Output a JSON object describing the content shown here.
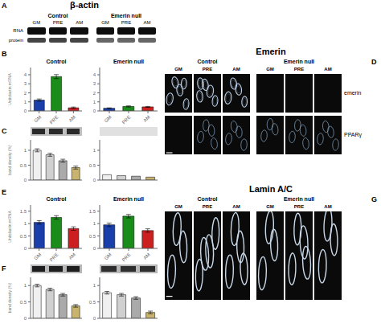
{
  "annotations": [
    "β-actin",
    "Emerin",
    "Lamin A/C",
    "A",
    "B",
    "C",
    "D",
    "E",
    "F",
    "G"
  ],
  "chart_data": [
    {
      "type": "gel",
      "title": "Control",
      "categories": [
        "GM",
        "PRE",
        "AM"
      ],
      "annotations": [
        "RNA",
        "protein"
      ]
    },
    {
      "type": "gel",
      "title": "Emerin null",
      "categories": [
        "GM",
        "PRE",
        "AM"
      ]
    },
    {
      "type": "bar",
      "title": "Control",
      "ylabel": "Units/actin mRNA",
      "categories": [
        "GM",
        "PRE",
        "AM"
      ],
      "values": [
        1.2,
        3.8,
        0.35
      ],
      "errors": [
        0.12,
        0.22,
        0.08
      ],
      "colors": [
        "#1a3faa",
        "#1a8c1a",
        "#cc2020"
      ],
      "ylim": [
        0,
        4.8
      ],
      "yticks": [
        0,
        1,
        2,
        3,
        4
      ]
    },
    {
      "type": "bar",
      "title": "Emerin null",
      "categories": [
        "GM",
        "PRE",
        "AM"
      ],
      "values": [
        0.3,
        0.5,
        0.45
      ],
      "errors": [
        0.04,
        0.06,
        0.05
      ],
      "colors": [
        "#1a3faa",
        "#1a8c1a",
        "#cc2020"
      ],
      "ylim": [
        0,
        4.8
      ],
      "yticks": [
        0,
        1,
        2,
        3,
        4
      ]
    },
    {
      "type": "bar",
      "ylabel": "band density (%)",
      "categories": [
        null,
        null,
        null,
        null
      ],
      "values": [
        1.0,
        0.85,
        0.65,
        0.42
      ],
      "errors": [
        0.05,
        0.05,
        0.05,
        0.05
      ],
      "colors": [
        "#f0f0f0",
        "#d0d0d0",
        "#aaaaaa",
        "#c8b46e"
      ],
      "ylim": [
        0,
        1.35
      ],
      "yticks": [
        0,
        0.5,
        1
      ],
      "tick_labels": "y"
    },
    {
      "type": "bar",
      "categories": [
        null,
        null,
        null,
        null
      ],
      "values": [
        0.18,
        0.15,
        0.13,
        0.1
      ],
      "colors": [
        "#f0f0f0",
        "#d0d0d0",
        "#aaaaaa",
        "#c8b46e"
      ],
      "ylim": [
        0,
        1.35
      ],
      "yticks": [
        0,
        0.5,
        1
      ],
      "tick_labels": "y"
    },
    {
      "type": "image",
      "title": "Control",
      "categories": [
        "GM",
        "PRE",
        "AM"
      ],
      "annotations": [
        "emerin",
        "PPARγ"
      ],
      "color": "#b8cce4"
    },
    {
      "type": "image",
      "title": "Emerin null",
      "categories": [
        "GM",
        "PRE",
        "AM"
      ]
    },
    {
      "type": "bar",
      "title": "Control",
      "ylabel": "Units/actin mRNA",
      "categories": [
        "GM",
        "PRE",
        "AM"
      ],
      "values": [
        1.05,
        1.25,
        0.8
      ],
      "errors": [
        0.07,
        0.07,
        0.07
      ],
      "colors": [
        "#1a3faa",
        "#1a8c1a",
        "#cc2020"
      ],
      "ylim": [
        0,
        1.75
      ],
      "yticks": [
        0,
        0.5,
        1,
        1.5
      ]
    },
    {
      "type": "bar",
      "title": "Emerin null",
      "categories": [
        "GM",
        "PRE",
        "AM"
      ],
      "values": [
        0.95,
        1.3,
        0.72
      ],
      "errors": [
        0.07,
        0.07,
        0.07
      ],
      "colors": [
        "#1a3faa",
        "#1a8c1a",
        "#cc2020"
      ],
      "ylim": [
        0,
        1.75
      ],
      "yticks": [
        0,
        0.5,
        1,
        1.5
      ]
    },
    {
      "type": "bar",
      "ylabel": "band density (%)",
      "categories": [
        null,
        null,
        null,
        null
      ],
      "values": [
        1.0,
        0.88,
        0.72,
        0.38
      ],
      "errors": [
        0.04,
        0.04,
        0.04,
        0.04
      ],
      "colors": [
        "#f0f0f0",
        "#d0d0d0",
        "#aaaaaa",
        "#c8b46e"
      ],
      "ylim": [
        0,
        1.25
      ],
      "yticks": [
        0,
        0.5,
        1
      ],
      "tick_labels": "y"
    },
    {
      "type": "bar",
      "categories": [
        null,
        null,
        null,
        null
      ],
      "values": [
        0.78,
        0.72,
        0.62,
        0.18
      ],
      "errors": [
        0.04,
        0.04,
        0.04,
        0.04
      ],
      "colors": [
        "#f0f0f0",
        "#d0d0d0",
        "#aaaaaa",
        "#c8b46e"
      ],
      "ylim": [
        0,
        1.25
      ],
      "yticks": [
        0,
        0.5,
        1
      ],
      "tick_labels": "y"
    },
    {
      "type": "image",
      "title": "Control",
      "categories": [
        "GM",
        "PRE",
        "AM"
      ],
      "color": "#c8d8e8"
    },
    {
      "type": "image",
      "title": "Emerin null",
      "categories": [
        "GM",
        "PRE",
        "AM"
      ],
      "color": "#c8d8e8"
    }
  ]
}
